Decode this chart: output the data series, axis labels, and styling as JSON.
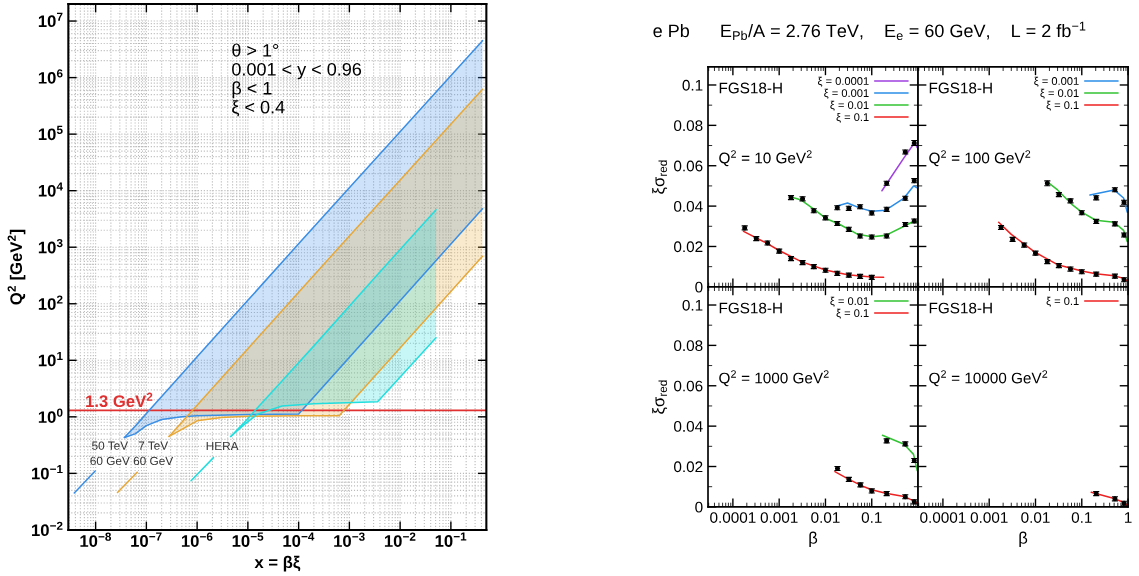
{
  "chart_data": [
    {
      "type": "line",
      "xlabel": "x = βξ",
      "ylabel": "Q$^{2}$ [GeV$^{2}$]",
      "log": "xy",
      "grid": true,
      "xlim": [
        2.9e-09,
        0.5
      ],
      "ylim": [
        0.01,
        20000000.0
      ],
      "xticks": [
        {
          "value": 1e-08,
          "label": "10$^{−8}$"
        },
        {
          "value": 1e-07,
          "label": "10$^{−7}$"
        },
        {
          "value": 1e-06,
          "label": "10$^{−6}$"
        },
        {
          "value": 1e-05,
          "label": "10$^{−5}$"
        },
        {
          "value": 0.0001,
          "label": "10$^{−4}$"
        },
        {
          "value": 0.001,
          "label": "10$^{−3}$"
        },
        {
          "value": 0.01,
          "label": "10$^{−2}$"
        },
        {
          "value": 0.1,
          "label": "10$^{−1}$"
        }
      ],
      "yticks": [
        {
          "value": 0.01,
          "label": "10$^{−2}$"
        },
        {
          "value": 0.1,
          "label": "10$^{−1}$"
        },
        {
          "value": 1,
          "label": "10$^{0}$"
        },
        {
          "value": 10,
          "label": "10$^{1}$"
        },
        {
          "value": 100,
          "label": "10$^{2}$"
        },
        {
          "value": 1000,
          "label": "10$^{3}$"
        },
        {
          "value": 10000,
          "label": "10$^{4}$"
        },
        {
          "value": 100000,
          "label": "10$^{5}$"
        },
        {
          "value": 1000000,
          "label": "10$^{6}$"
        },
        {
          "value": 10000000,
          "label": "10$^{7}$"
        }
      ],
      "annotations": [
        "θ > 1°",
        "0.001 < y < 0.96",
        "β < 1",
        "ξ < 0.4"
      ],
      "ref_lines": [
        {
          "axis": "y",
          "value": 1.3,
          "label": "1.3 GeV$^{2}$",
          "color": "#e03030"
        }
      ],
      "series": [
        {
          "name": "50 TeV\n60 GeV",
          "color": "#3a8ee6",
          "x": [
            3.8e-09,
            9.8e-09,
            2e-08,
            3.7e-08,
            6e-08,
            1e-07,
            2e-07,
            5e-07,
            1e-06,
            1e-05,
            0.0001,
            0.42
          ],
          "values": [
            0.045,
            0.11,
            null,
            0.43,
            0.68,
            1.15,
            2.3,
            5.7,
            11.5,
            115,
            1150,
            4500000
          ],
          "lower": [
            null,
            null,
            null,
            0.43,
            0.5,
            0.7,
            0.9,
            1.0,
            1.05,
            1.1,
            1.12,
            4800
          ],
          "upper": [
            null,
            null,
            null,
            0.43,
            0.68,
            1.15,
            2.3,
            5.7,
            11.5,
            115,
            1150,
            4500000
          ]
        },
        {
          "color": "#3a8ee6",
          "x": [
            3.7e-08,
            6e-08,
            1e-07,
            2e-07,
            5e-07,
            1e-06,
            1e-05,
            0.0001,
            0.42
          ],
          "values": [
            0.43,
            0.5,
            0.7,
            0.9,
            1.0,
            1.05,
            1.1,
            1.12,
            4800
          ]
        },
        {
          "name": "7 TeV\n60 GeV",
          "color": "#e8a838",
          "x": [
            2.7e-08,
            6.6e-08,
            1.3e-07,
            2.8e-07,
            5e-07,
            1e-06,
            3e-06,
            1e-05,
            0.0001,
            0.00063,
            0.42
          ],
          "values": [
            0.046,
            0.105,
            null,
            0.45,
            0.8,
            1.6,
            4.8,
            16,
            160,
            1000,
            620000
          ],
          "lower": [
            null,
            null,
            null,
            0.45,
            0.6,
            0.85,
            0.97,
            1.02,
            1.05,
            1.05,
            690
          ],
          "upper": [
            null,
            null,
            null,
            0.45,
            0.8,
            1.6,
            4.8,
            16,
            160,
            1000,
            620000
          ]
        },
        {
          "color": "#e8a838",
          "x": [
            2.8e-07,
            5e-07,
            1e-06,
            3e-06,
            1e-05,
            0.0001,
            0.00063,
            0.42
          ],
          "values": [
            0.45,
            0.6,
            0.85,
            0.97,
            1.02,
            1.05,
            1.05,
            690
          ]
        },
        {
          "name": "HERA",
          "color": "#22dede",
          "x": [
            7.6e-07,
            2.1e-06,
            3.3e-06,
            4.6e-06,
            8e-06,
            1.5e-05,
            4.7e-05,
            0.0002,
            0.0036,
            0.051
          ],
          "values": [
            0.074,
            0.19,
            null,
            0.45,
            0.75,
            1.4,
            4.3,
            18,
            330,
            4600
          ],
          "lower": [
            null,
            null,
            null,
            0.45,
            0.7,
            1.1,
            1.55,
            1.7,
            1.85,
            25
          ],
          "upper": [
            null,
            null,
            null,
            0.45,
            0.75,
            1.4,
            4.3,
            18,
            330,
            4600
          ]
        },
        {
          "color": "#22dede",
          "x": [
            4.6e-06,
            8e-06,
            1.5e-05,
            4.7e-05,
            0.0002,
            0.0036,
            0.051
          ],
          "values": [
            0.45,
            0.7,
            1.1,
            1.55,
            1.7,
            1.85,
            25
          ]
        }
      ]
    },
    {
      "type": "scatter",
      "title": "e Pb      E$_{Pb}$/A = 2.76 TeV,    E$_{e}$ = 60 GeV,    L = 2 fb$^{−1}$",
      "ylabel": "ξσ$_{red}$",
      "log": "x",
      "legend": "top right",
      "tick_labels": "y",
      "xlim": [
        2.9e-05,
        1
      ],
      "ylim": [
        0,
        0.109
      ],
      "xticks": [
        0.0001,
        0.001,
        0.01,
        0.1
      ],
      "yticks": [
        0,
        0.02,
        0.04,
        0.06,
        0.08,
        0.1
      ],
      "annotations": [
        "FGS18-H",
        "Q$^{2}$ = 10 GeV$^{2}$"
      ],
      "series": [
        {
          "type": "line",
          "marker": "none",
          "name": "ξ = 0.0001",
          "color": "#a040e0",
          "x": [
            0.166,
            0.5,
            0.85,
            0.96
          ],
          "values": [
            0.0476,
            0.064,
            0.0715,
            0.069
          ]
        },
        {
          "type": "line",
          "marker": "none",
          "name": "ξ = 0.001",
          "color": "#2b8de8",
          "x": [
            0.018,
            0.03,
            0.056,
            0.1,
            0.2,
            0.5,
            0.8,
            0.96
          ],
          "values": [
            0.04,
            0.0415,
            0.039,
            0.0375,
            0.038,
            0.044,
            0.05,
            0.049
          ]
        },
        {
          "type": "line",
          "marker": "none",
          "name": "ξ = 0.01",
          "color": "#33c433",
          "x": [
            0.0018,
            0.003,
            0.006,
            0.01,
            0.02,
            0.05,
            0.1,
            0.2,
            0.5,
            0.8,
            0.96
          ],
          "values": [
            0.0445,
            0.043,
            0.038,
            0.034,
            0.031,
            0.026,
            0.0248,
            0.0255,
            0.03,
            0.0325,
            0.032
          ]
        },
        {
          "type": "line",
          "marker": "none",
          "name": "ξ = 0.1",
          "color": "#ee2222",
          "x": [
            0.00017,
            0.0005,
            0.001,
            0.003,
            0.01,
            0.03,
            0.1,
            0.18
          ],
          "values": [
            0.0275,
            0.022,
            0.018,
            0.0125,
            0.0083,
            0.006,
            0.0049,
            0.0047
          ]
        },
        {
          "marker": "circle",
          "color": "#000000",
          "x": [
            0.21,
            0.53,
            0.83
          ],
          "values": [
            0.0513,
            0.0668,
            0.0713
          ],
          "errors": [
            0.001,
            0.001,
            0.0012
          ]
        },
        {
          "marker": "circle",
          "color": "#000000",
          "x": [
            0.018,
            0.032,
            0.056,
            0.1,
            0.21,
            0.53,
            0.83
          ],
          "values": [
            0.0392,
            0.0389,
            0.0397,
            0.0366,
            0.0384,
            0.0439,
            0.0526
          ],
          "errors": [
            0.001,
            0.001,
            0.001,
            0.001,
            0.001,
            0.001,
            0.001
          ]
        },
        {
          "marker": "circle",
          "color": "#000000",
          "x": [
            0.0018,
            0.0032,
            0.0056,
            0.01,
            0.018,
            0.032,
            0.056,
            0.1,
            0.21,
            0.53,
            0.83
          ],
          "values": [
            0.0442,
            0.0436,
            0.0377,
            0.0342,
            0.0314,
            0.0285,
            0.0252,
            0.0247,
            0.0252,
            0.0309,
            0.0326
          ],
          "errors": [
            0.001,
            0.001,
            0.001,
            0.001,
            0.001,
            0.001,
            0.001,
            0.001,
            0.001,
            0.001,
            0.001
          ]
        },
        {
          "marker": "circle",
          "color": "#000000",
          "x": [
            0.00018,
            0.00032,
            0.00056,
            0.001,
            0.0018,
            0.0032,
            0.0056,
            0.01,
            0.018,
            0.032,
            0.056,
            0.1
          ],
          "values": [
            0.0292,
            0.0239,
            0.0217,
            0.0177,
            0.014,
            0.012,
            0.01,
            0.0082,
            0.0067,
            0.0058,
            0.0052,
            0.0047
          ],
          "errors": [
            0.001,
            0.001,
            0.001,
            0.001,
            0.001,
            0.001,
            0.001,
            0.001,
            0.001,
            0.001,
            0.001,
            0.001
          ]
        }
      ]
    },
    {
      "type": "scatter",
      "log": "x",
      "legend": "top right",
      "tick_labels": false,
      "xlim": [
        2.9e-05,
        1
      ],
      "ylim": [
        0,
        0.109
      ],
      "xticks": [
        0.0001,
        0.001,
        0.01,
        0.1,
        1
      ],
      "yticks": [
        0,
        0.02,
        0.04,
        0.06,
        0.08,
        0.1
      ],
      "annotations": [
        "FGS18-H",
        "Q$^{2}$ = 100 GeV$^{2}$"
      ],
      "series": [
        {
          "type": "line",
          "marker": "none",
          "name": "ξ = 0.001",
          "color": "#2b8de8",
          "x": [
            0.15,
            0.5,
            0.8,
            0.96
          ],
          "values": [
            0.0455,
            0.048,
            0.044,
            0.037
          ]
        },
        {
          "type": "line",
          "marker": "none",
          "name": "ξ = 0.01",
          "color": "#33c433",
          "x": [
            0.018,
            0.03,
            0.06,
            0.1,
            0.2,
            0.5,
            0.8,
            0.96
          ],
          "values": [
            0.052,
            0.048,
            0.041,
            0.037,
            0.033,
            0.032,
            0.028,
            0.0225
          ]
        },
        {
          "type": "line",
          "marker": "none",
          "name": "ξ = 0.1",
          "color": "#ee2222",
          "x": [
            0.0016,
            0.003,
            0.01,
            0.03,
            0.1,
            0.2,
            0.5,
            0.8,
            0.96
          ],
          "values": [
            0.032,
            0.026,
            0.017,
            0.011,
            0.0078,
            0.0065,
            0.0055,
            0.0042,
            0.003
          ]
        },
        {
          "marker": "circle",
          "color": "#000000",
          "x": [
            0.205,
            0.52,
            0.82
          ],
          "values": [
            0.0441,
            0.0481,
            0.0419
          ],
          "errors": [
            0.001,
            0.001,
            0.001
          ]
        },
        {
          "marker": "circle",
          "color": "#000000",
          "x": [
            0.018,
            0.032,
            0.057,
            0.1,
            0.205,
            0.52,
            0.82
          ],
          "values": [
            0.0513,
            0.0457,
            0.0426,
            0.0367,
            0.0324,
            0.0312,
            0.0257
          ],
          "errors": [
            0.0012,
            0.001,
            0.001,
            0.001,
            0.001,
            0.001,
            0.001
          ]
        },
        {
          "marker": "circle",
          "color": "#000000",
          "x": [
            0.0018,
            0.0032,
            0.0057,
            0.01,
            0.018,
            0.032,
            0.057,
            0.1,
            0.205,
            0.52,
            0.82
          ],
          "values": [
            0.0294,
            0.0235,
            0.0207,
            0.0167,
            0.0125,
            0.0105,
            0.0088,
            0.0075,
            0.0063,
            0.0053,
            0.0035
          ],
          "errors": [
            0.001,
            0.001,
            0.001,
            0.001,
            0.001,
            0.001,
            0.001,
            0.001,
            0.001,
            0.001,
            0.001
          ]
        }
      ]
    },
    {
      "type": "scatter",
      "xlabel": "β",
      "ylabel": "ξσ$_{red}$",
      "log": "x",
      "legend": "top right",
      "xlim": [
        2.9e-05,
        1
      ],
      "ylim": [
        0,
        0.109
      ],
      "xticks": [
        0.0001,
        0.001,
        0.01,
        0.1
      ],
      "yticks": [
        0,
        0.02,
        0.04,
        0.06,
        0.08,
        0.1
      ],
      "annotations": [
        "FGS18-H",
        "Q$^{2}$ = 1000 GeV$^{2}$"
      ],
      "series": [
        {
          "type": "line",
          "marker": "none",
          "name": "ξ = 0.01",
          "color": "#33c433",
          "x": [
            0.17,
            0.5,
            0.8,
            0.96
          ],
          "values": [
            0.0355,
            0.031,
            0.026,
            0.018
          ]
        },
        {
          "type": "line",
          "marker": "none",
          "name": "ξ = 0.1",
          "color": "#ee2222",
          "x": [
            0.016,
            0.03,
            0.06,
            0.1,
            0.2,
            0.5,
            0.8,
            0.96
          ],
          "values": [
            0.0175,
            0.014,
            0.0105,
            0.0085,
            0.0068,
            0.0052,
            0.003,
            0.0018
          ]
        },
        {
          "marker": "circle",
          "color": "#000000",
          "x": [
            0.21,
            0.53,
            0.83
          ],
          "values": [
            0.0327,
            0.0312,
            0.023
          ],
          "errors": [
            0.001,
            0.001,
            0.001
          ]
        },
        {
          "marker": "circle",
          "color": "#000000",
          "x": [
            0.0182,
            0.032,
            0.057,
            0.1,
            0.21,
            0.53,
            0.83
          ],
          "values": [
            0.019,
            0.0136,
            0.0109,
            0.0079,
            0.0066,
            0.005,
            0.0025
          ],
          "errors": [
            0.001,
            0.001,
            0.001,
            0.001,
            0.001,
            0.001,
            0.001
          ]
        }
      ]
    },
    {
      "type": "scatter",
      "xlabel": "β",
      "log": "x",
      "legend": "top right",
      "tick_labels": "x",
      "xlim": [
        2.9e-05,
        1
      ],
      "ylim": [
        0,
        0.109
      ],
      "xticks": [
        0.0001,
        0.001,
        0.01,
        0.1,
        1
      ],
      "yticks": [
        0,
        0.02,
        0.04,
        0.06,
        0.08,
        0.1
      ],
      "annotations": [
        "FGS18-H",
        "Q$^{2}$ = 10000 GeV$^{2}$"
      ],
      "series": [
        {
          "type": "line",
          "marker": "none",
          "name": "ξ = 0.1",
          "color": "#ee2222",
          "x": [
            0.16,
            0.5,
            0.8,
            0.96
          ],
          "values": [
            0.0072,
            0.0042,
            0.0022,
            0.0008
          ]
        },
        {
          "marker": "circle",
          "color": "#000000",
          "x": [
            0.205,
            0.52,
            0.82
          ],
          "values": [
            0.0066,
            0.004,
            0.0018
          ],
          "errors": [
            0.001,
            0.001,
            0.001
          ]
        }
      ]
    }
  ]
}
